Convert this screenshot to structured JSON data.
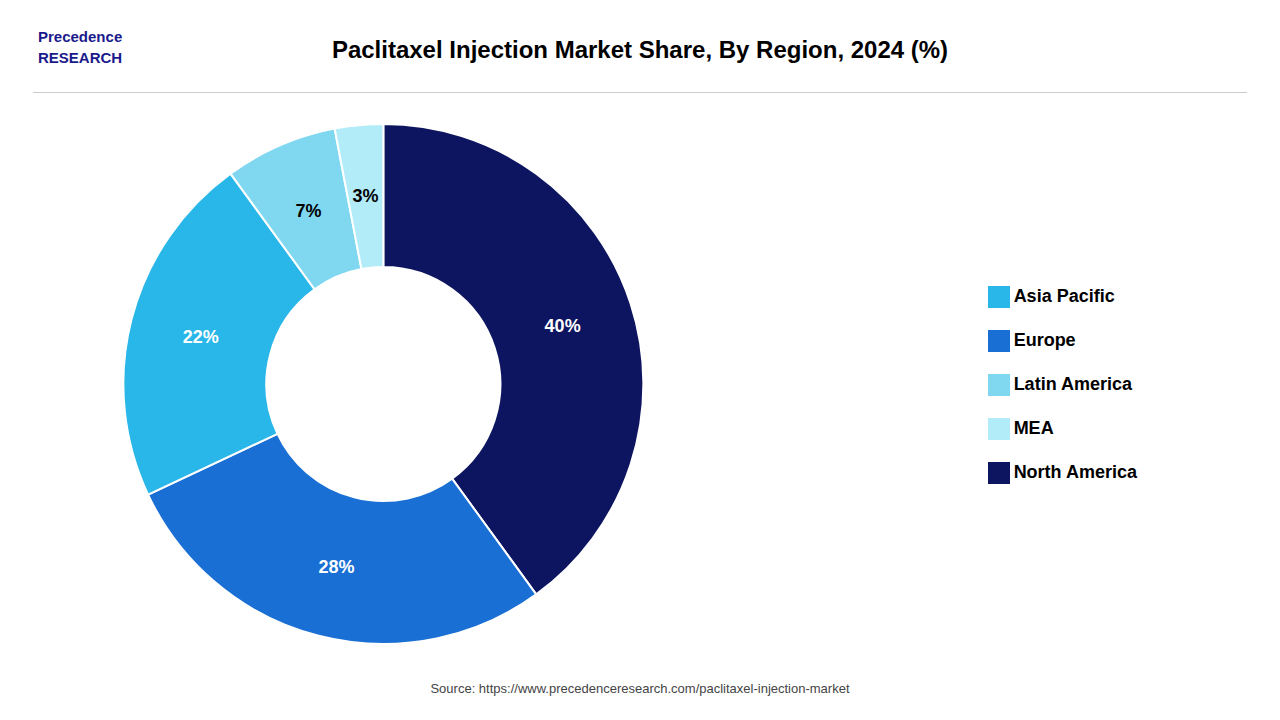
{
  "chart_data": {
    "type": "pie",
    "title": "Paclitaxel Injection Market Share, By Region, 2024 (%)",
    "categories": [
      "North America",
      "Europe",
      "Asia Pacific",
      "Latin America",
      "MEA"
    ],
    "values": [
      40,
      28,
      22,
      7,
      3
    ],
    "value_labels": [
      "40%",
      "28%",
      "22%",
      "7%",
      "3%"
    ],
    "colors": [
      "#0d1560",
      "#1a6fd4",
      "#29b6e8",
      "#7fd8f0",
      "#b2ecf8"
    ],
    "data_labels": true,
    "legend": "right",
    "annotations": [
      "Precedence\nRESEARCH",
      "Source: https://www.precedenceresearch.com/paclitaxel-injection-market"
    ]
  }
}
